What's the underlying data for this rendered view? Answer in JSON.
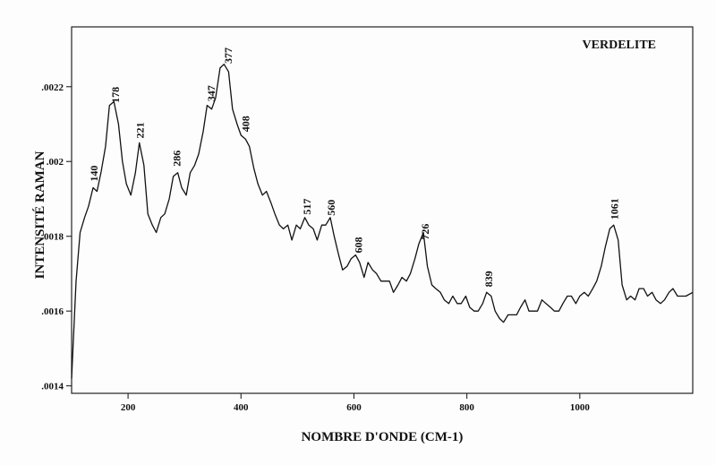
{
  "chart_data": {
    "type": "line",
    "title": "VERDELITE",
    "xlabel": "NOMBRE D'ONDE (CM-1)",
    "ylabel": "INTENSITÉ RAMAN",
    "xlim": [
      100,
      1200
    ],
    "ylim": [
      0.00138,
      0.00236
    ],
    "x_ticks": [
      200,
      400,
      600,
      800,
      1000
    ],
    "x_tick_labels": [
      "200",
      "400",
      "600",
      "800",
      "1000"
    ],
    "y_ticks": [
      0.0014,
      0.0016,
      0.0018,
      0.002,
      0.0022
    ],
    "y_tick_labels": [
      ".0014",
      ".0016",
      ".0018",
      ".002",
      ".0022"
    ],
    "peaks": [
      {
        "x": 140,
        "label": "140"
      },
      {
        "x": 178,
        "label": "178"
      },
      {
        "x": 221,
        "label": "221"
      },
      {
        "x": 286,
        "label": "286"
      },
      {
        "x": 347,
        "label": "347"
      },
      {
        "x": 377,
        "label": "377"
      },
      {
        "x": 408,
        "label": "408"
      },
      {
        "x": 517,
        "label": "517"
      },
      {
        "x": 560,
        "label": "560"
      },
      {
        "x": 608,
        "label": "608"
      },
      {
        "x": 726,
        "label": "726"
      },
      {
        "x": 839,
        "label": "839"
      },
      {
        "x": 1061,
        "label": "1061"
      }
    ],
    "series": [
      {
        "x": [
          100,
          108,
          115,
          123,
          130,
          138,
          145,
          152,
          160,
          167,
          175,
          183,
          190,
          197,
          205,
          213,
          220,
          228,
          235,
          243,
          250,
          258,
          265,
          273,
          280,
          288,
          295,
          303,
          310,
          318,
          325,
          333,
          340,
          348,
          355,
          363,
          370,
          378,
          385,
          393,
          400,
          408,
          415,
          423,
          430,
          438,
          445,
          453,
          460,
          468,
          475,
          483,
          490,
          498,
          505,
          513,
          520,
          528,
          535,
          543,
          550,
          558,
          565,
          573,
          580,
          588,
          595,
          603,
          610,
          618,
          625,
          633,
          640,
          648,
          655,
          663,
          670,
          678,
          685,
          693,
          700,
          708,
          715,
          723,
          730,
          738,
          745,
          753,
          760,
          768,
          775,
          783,
          790,
          798,
          805,
          813,
          820,
          828,
          835,
          843,
          850,
          858,
          865,
          873,
          880,
          888,
          895,
          903,
          910,
          918,
          925,
          933,
          940,
          948,
          955,
          963,
          970,
          978,
          985,
          993,
          1000,
          1008,
          1015,
          1023,
          1030,
          1038,
          1045,
          1053,
          1060,
          1068,
          1075,
          1083,
          1090,
          1098,
          1105,
          1113,
          1120,
          1128,
          1135,
          1143,
          1150,
          1158,
          1165,
          1173,
          1180,
          1188,
          1200
        ],
        "y": [
          0.00142,
          0.00168,
          0.00181,
          0.00185,
          0.00188,
          0.00193,
          0.00192,
          0.00197,
          0.00204,
          0.00215,
          0.00216,
          0.0021,
          0.002,
          0.00194,
          0.00191,
          0.00197,
          0.00205,
          0.00199,
          0.00186,
          0.00183,
          0.00181,
          0.00185,
          0.00186,
          0.0019,
          0.00196,
          0.00197,
          0.00193,
          0.00191,
          0.00197,
          0.00199,
          0.00202,
          0.00208,
          0.00215,
          0.00214,
          0.00217,
          0.00225,
          0.00226,
          0.00224,
          0.00214,
          0.0021,
          0.00207,
          0.00206,
          0.00204,
          0.00198,
          0.00194,
          0.00191,
          0.00192,
          0.00189,
          0.00186,
          0.00183,
          0.00182,
          0.00183,
          0.00179,
          0.00183,
          0.00182,
          0.00185,
          0.00183,
          0.00182,
          0.00179,
          0.00183,
          0.00183,
          0.00185,
          0.0018,
          0.00175,
          0.00171,
          0.00172,
          0.00174,
          0.00175,
          0.00173,
          0.00169,
          0.00173,
          0.00171,
          0.0017,
          0.00168,
          0.00168,
          0.00168,
          0.00165,
          0.00167,
          0.00169,
          0.00168,
          0.0017,
          0.00174,
          0.00178,
          0.00181,
          0.00172,
          0.00167,
          0.00166,
          0.00165,
          0.00163,
          0.00162,
          0.00164,
          0.00162,
          0.00162,
          0.00164,
          0.00161,
          0.0016,
          0.0016,
          0.00162,
          0.00165,
          0.00164,
          0.0016,
          0.00158,
          0.00157,
          0.00159,
          0.00159,
          0.00159,
          0.00161,
          0.00163,
          0.0016,
          0.0016,
          0.0016,
          0.00163,
          0.00162,
          0.00161,
          0.0016,
          0.0016,
          0.00162,
          0.00164,
          0.00164,
          0.00162,
          0.00164,
          0.00165,
          0.00164,
          0.00166,
          0.00168,
          0.00172,
          0.00177,
          0.00182,
          0.00183,
          0.00179,
          0.00167,
          0.00163,
          0.00164,
          0.00163,
          0.00166,
          0.00166,
          0.00164,
          0.00165,
          0.00163,
          0.00162,
          0.00163,
          0.00165,
          0.00166,
          0.00164,
          0.00164,
          0.00164,
          0.00165
        ]
      }
    ],
    "grid": false,
    "legend": "none"
  }
}
